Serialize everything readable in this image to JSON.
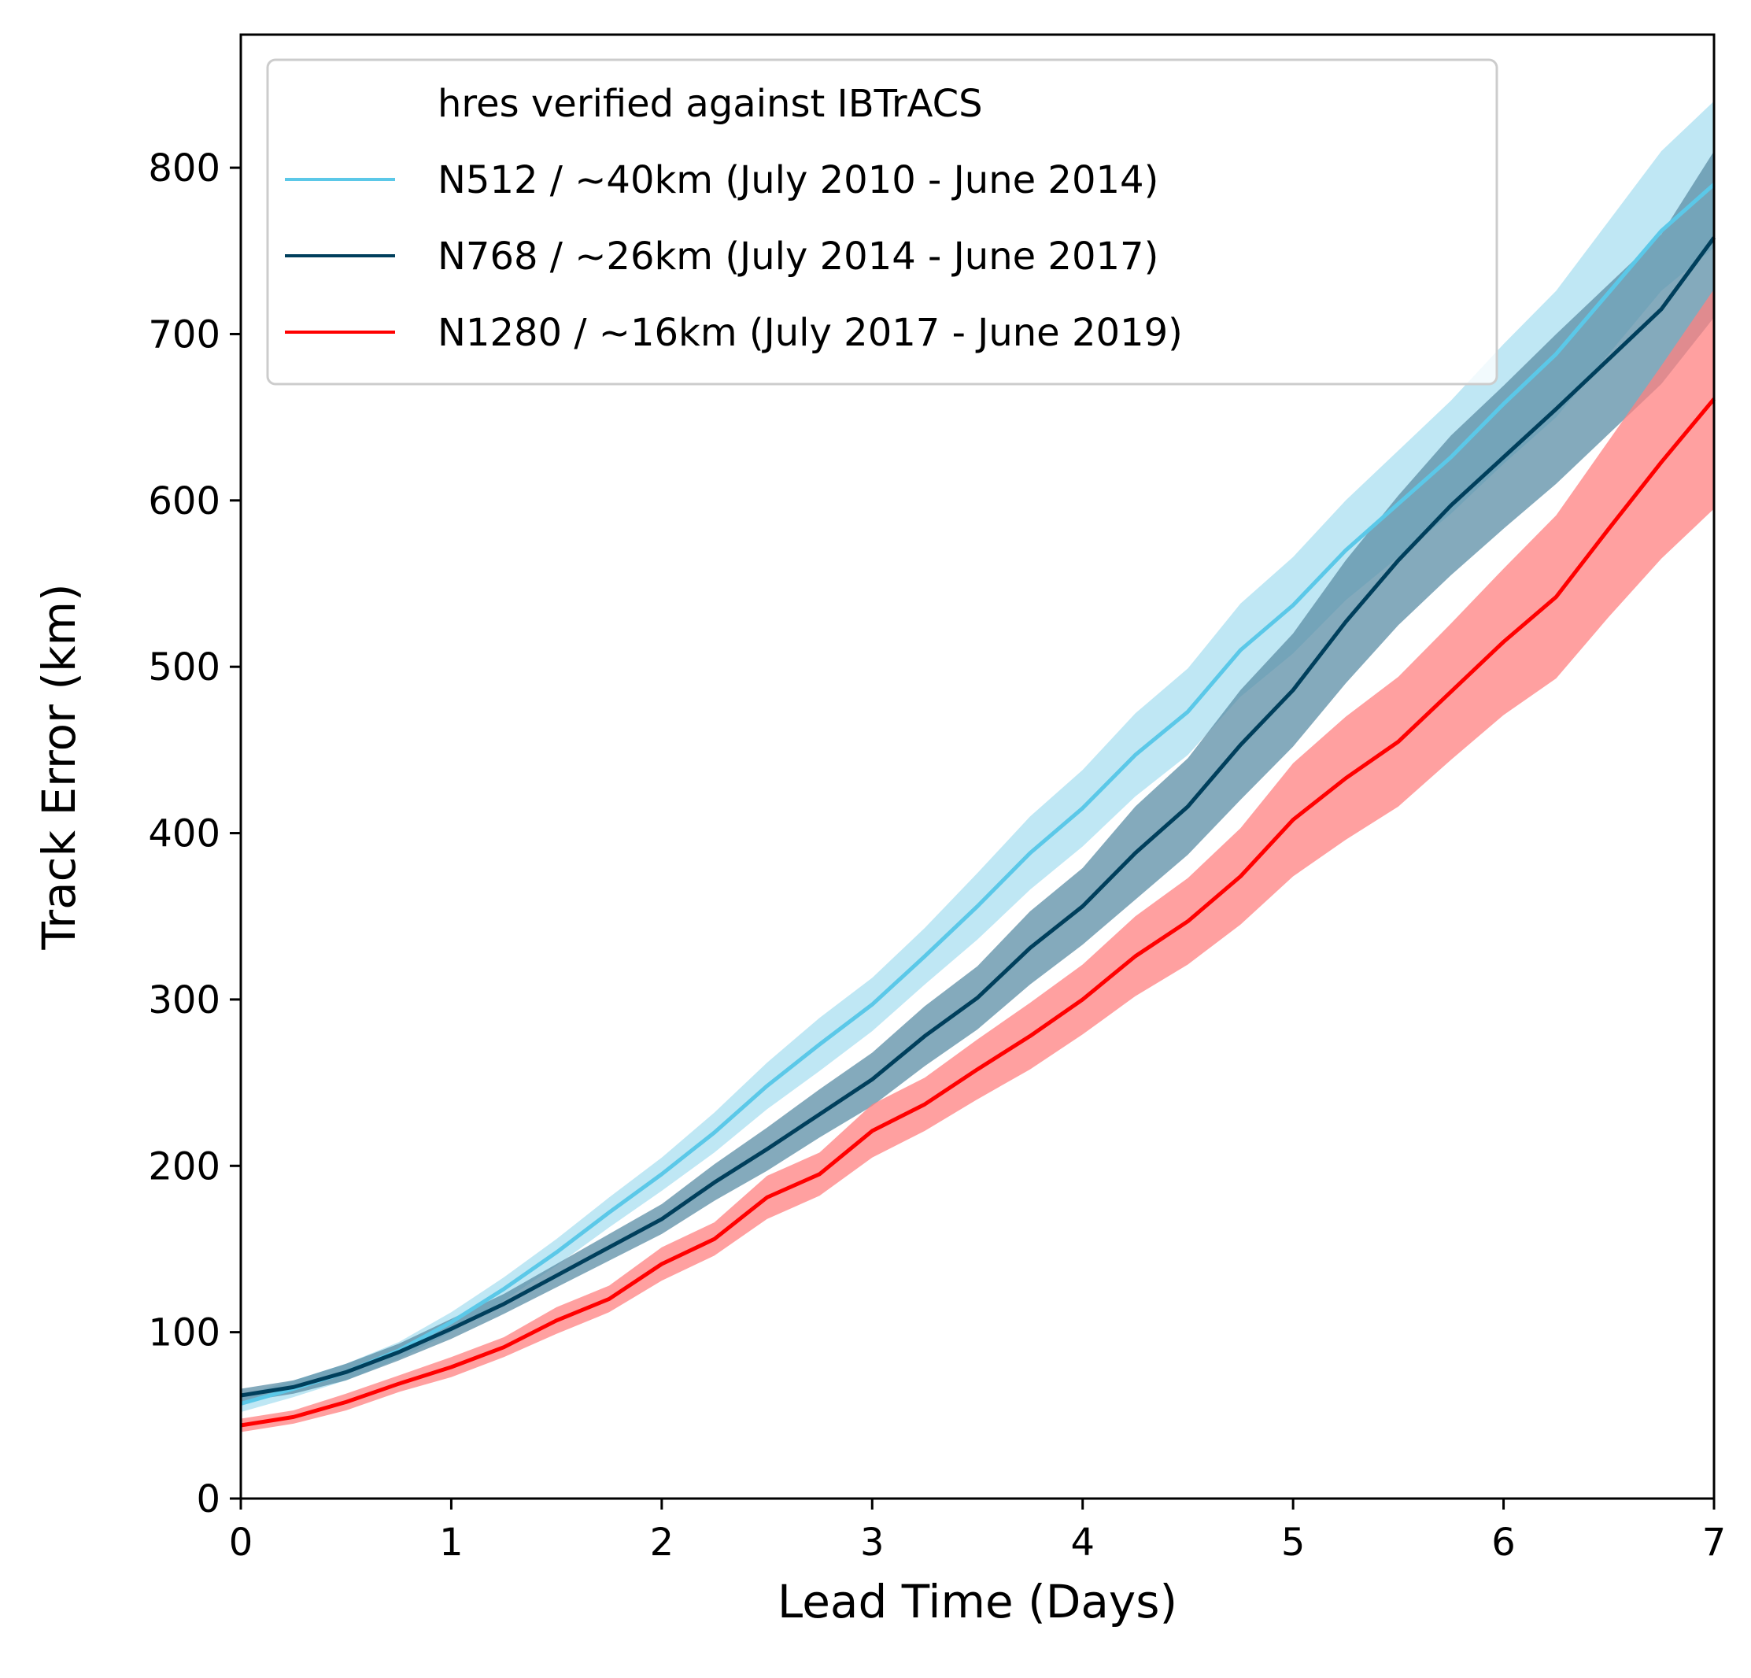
{
  "chart_data": {
    "type": "line",
    "title": "",
    "xlabel": "Lead Time (Days)",
    "ylabel": "Track Error (km)",
    "xlim": [
      0,
      7
    ],
    "ylim": [
      0,
      880
    ],
    "xticks": [
      "0",
      "1",
      "2",
      "3",
      "4",
      "5",
      "6",
      "7"
    ],
    "yticks": [
      "0",
      "100",
      "200",
      "300",
      "400",
      "500",
      "600",
      "700",
      "800"
    ],
    "grid": false,
    "legend": {
      "placement": "top-left",
      "title": "hres verified against IBTrACS"
    },
    "x": [
      0,
      0.25,
      0.5,
      0.75,
      1,
      1.25,
      1.5,
      1.75,
      2,
      2.25,
      2.5,
      2.75,
      3,
      3.25,
      3.5,
      3.75,
      4,
      4.25,
      4.5,
      4.75,
      5,
      5.25,
      5.5,
      5.75,
      6,
      6.25,
      6.5,
      6.75,
      7
    ],
    "series": [
      {
        "name": "N512 / ~40km (July 2010 - June 2014)",
        "color": "#5bc8e8",
        "band_color": "#a9dff0",
        "values": [
          57,
          66,
          76,
          89,
          106,
          126,
          148,
          172,
          195,
          220,
          248,
          273,
          297,
          326,
          356,
          388,
          415,
          447,
          473,
          510,
          537,
          570,
          598,
          626,
          658,
          688,
          725,
          762,
          790
        ],
        "lower": [
          52,
          61,
          71,
          84,
          100,
          119,
          140,
          163,
          185,
          208,
          234,
          257,
          281,
          309,
          336,
          366,
          392,
          422,
          447,
          482,
          508,
          540,
          566,
          592,
          622,
          650,
          688,
          726,
          752
        ],
        "upper": [
          62,
          71,
          81,
          94,
          112,
          133,
          156,
          181,
          205,
          232,
          262,
          289,
          313,
          343,
          376,
          410,
          438,
          472,
          499,
          538,
          566,
          600,
          630,
          660,
          694,
          726,
          768,
          810,
          840
        ]
      },
      {
        "name": "N768 / ~26km (July 2014 - June 2017)",
        "color": "#003f5c",
        "band_color": "#5b8ea6",
        "values": [
          62,
          67,
          76,
          88,
          102,
          117,
          134,
          151,
          168,
          190,
          210,
          231,
          252,
          278,
          301,
          331,
          356,
          388,
          416,
          453,
          486,
          527,
          564,
          597,
          626,
          655,
          685,
          715,
          758
        ],
        "lower": [
          58,
          63,
          71,
          83,
          96,
          111,
          127,
          143,
          159,
          179,
          197,
          217,
          236,
          260,
          282,
          309,
          333,
          360,
          387,
          420,
          452,
          490,
          525,
          555,
          583,
          610,
          640,
          670,
          710
        ],
        "upper": [
          66,
          71,
          81,
          93,
          108,
          123,
          141,
          159,
          177,
          201,
          223,
          246,
          268,
          296,
          320,
          353,
          379,
          416,
          445,
          486,
          520,
          564,
          603,
          639,
          669,
          700,
          730,
          760,
          810
        ]
      },
      {
        "name": "N1280 / ~16km (July 2017 - June 2019)",
        "color": "#ff0000",
        "band_color": "#ff8080",
        "values": [
          44,
          49,
          58,
          69,
          79,
          91,
          107,
          120,
          141,
          156,
          181,
          195,
          221,
          237,
          258,
          278,
          300,
          326,
          347,
          374,
          408,
          433,
          455,
          485,
          515,
          542,
          583,
          623,
          661
        ],
        "lower": [
          40,
          45,
          53,
          64,
          73,
          85,
          99,
          112,
          131,
          146,
          168,
          182,
          205,
          221,
          240,
          258,
          279,
          302,
          321,
          345,
          374,
          396,
          416,
          444,
          471,
          493,
          530,
          565,
          595
        ],
        "upper": [
          48,
          53,
          63,
          74,
          85,
          97,
          115,
          128,
          151,
          166,
          194,
          208,
          237,
          253,
          276,
          298,
          321,
          350,
          373,
          403,
          442,
          470,
          494,
          526,
          559,
          591,
          636,
          681,
          727
        ]
      }
    ]
  }
}
